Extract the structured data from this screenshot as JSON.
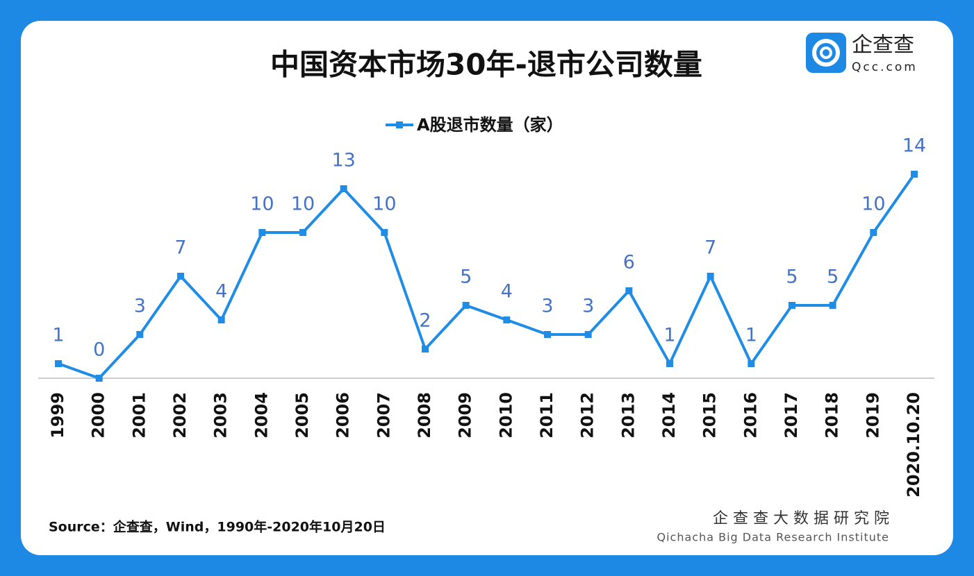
{
  "chart_data": {
    "type": "line",
    "title": "中国资本市场30年-退市公司数量",
    "categories": [
      "1999",
      "2000",
      "2001",
      "2002",
      "2003",
      "2004",
      "2005",
      "2006",
      "2007",
      "2008",
      "2009",
      "2010",
      "2011",
      "2012",
      "2013",
      "2014",
      "2015",
      "2016",
      "2017",
      "2018",
      "2019",
      "2020.10.20"
    ],
    "series": [
      {
        "name": "A股退市数量（家）",
        "color": "#1f8ce6",
        "values": [
          1,
          0,
          3,
          7,
          4,
          10,
          10,
          13,
          10,
          2,
          5,
          4,
          3,
          3,
          6,
          1,
          7,
          1,
          5,
          5,
          10,
          14
        ]
      }
    ],
    "ylim": [
      0,
      14
    ],
    "source": "Source：企查查，Wind，1990年-2020年10月20日",
    "logo": {
      "name": "企查查",
      "site": "Qcc.com"
    },
    "footer": {
      "name": "企 查 查 大 数 据 研 究 院",
      "english": "Qichacha Big Data Research Institute"
    }
  }
}
